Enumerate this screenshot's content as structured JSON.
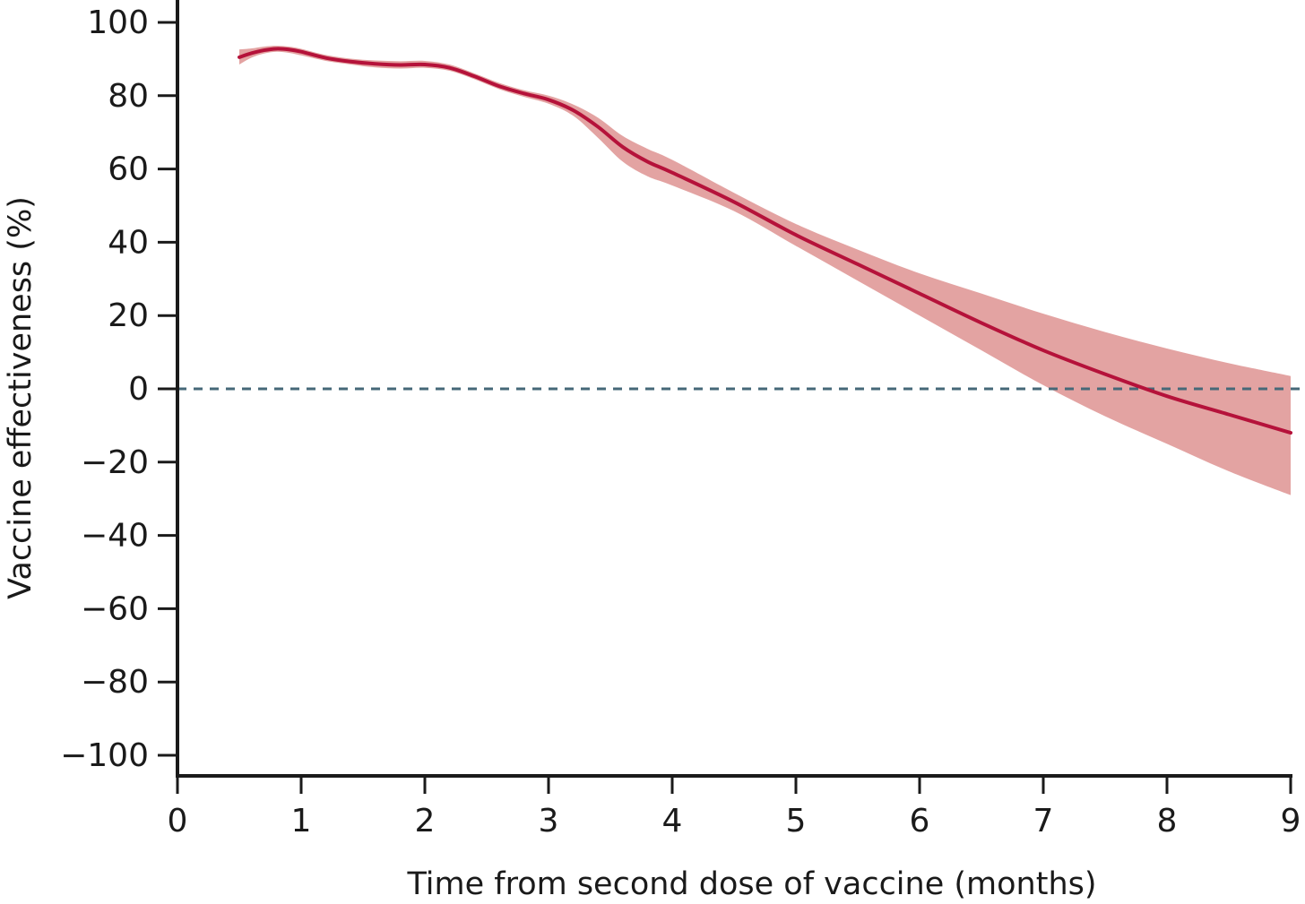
{
  "chart_data": {
    "type": "line",
    "title": "",
    "xlabel": "Time from second dose of vaccine (months)",
    "ylabel": "Vaccine effectiveness (%)",
    "xlim": [
      0,
      9
    ],
    "ylim": [
      -100,
      100
    ],
    "x_ticks": [
      {
        "value": 0,
        "label": "0"
      },
      {
        "value": 1,
        "label": "1"
      },
      {
        "value": 2,
        "label": "2"
      },
      {
        "value": 3,
        "label": "3"
      },
      {
        "value": 4,
        "label": "4"
      },
      {
        "value": 5,
        "label": "5"
      },
      {
        "value": 6,
        "label": "6"
      },
      {
        "value": 7,
        "label": "7"
      },
      {
        "value": 8,
        "label": "8"
      },
      {
        "value": 9,
        "label": "9"
      }
    ],
    "y_ticks": [
      {
        "value": 100,
        "label": "100"
      },
      {
        "value": 80,
        "label": "80"
      },
      {
        "value": 60,
        "label": "60"
      },
      {
        "value": 40,
        "label": "40"
      },
      {
        "value": 20,
        "label": "20"
      },
      {
        "value": 0,
        "label": "0"
      },
      {
        "value": -20,
        "label": "−20"
      },
      {
        "value": -40,
        "label": "−40"
      },
      {
        "value": -60,
        "label": "−60"
      },
      {
        "value": -80,
        "label": "−80"
      },
      {
        "value": -100,
        "label": "−100"
      }
    ],
    "reference_line": {
      "y": 0,
      "style": "dashed",
      "color": "#466878"
    },
    "grid": false,
    "series": [
      {
        "color": "#b5123a",
        "band_color": "#e3a3a2",
        "x": [
          0.5,
          0.6,
          0.7,
          0.8,
          0.9,
          1.0,
          1.2,
          1.4,
          1.6,
          1.8,
          2.0,
          2.2,
          2.4,
          2.6,
          2.8,
          3.0,
          3.2,
          3.4,
          3.6,
          3.8,
          4.0,
          4.5,
          5.0,
          5.5,
          6.0,
          6.5,
          7.0,
          7.5,
          8.0,
          8.5,
          9.0
        ],
        "y": [
          90.5,
          91.6,
          92.4,
          92.8,
          92.6,
          92.0,
          90.3,
          89.3,
          88.7,
          88.4,
          88.5,
          87.6,
          85.3,
          82.6,
          80.6,
          78.9,
          76.0,
          71.5,
          66.0,
          62.0,
          59.0,
          51.0,
          42.0,
          34.0,
          26.0,
          18.0,
          10.5,
          4.0,
          -2.0,
          -7.0,
          -12.0
        ],
        "lower": [
          88.5,
          90.4,
          91.5,
          92.0,
          91.7,
          91.0,
          89.5,
          88.5,
          87.7,
          87.4,
          87.6,
          86.8,
          84.5,
          81.8,
          79.7,
          77.8,
          74.5,
          68.5,
          62.0,
          58.0,
          55.5,
          48.5,
          39.0,
          29.5,
          20.0,
          10.5,
          1.0,
          -7.5,
          -15.0,
          -22.5,
          -29.0
        ],
        "upper": [
          92.6,
          92.9,
          93.4,
          93.6,
          93.4,
          92.8,
          91.1,
          90.1,
          89.6,
          89.4,
          89.5,
          88.5,
          86.1,
          83.5,
          81.5,
          80.0,
          77.6,
          74.0,
          69.0,
          65.5,
          62.5,
          53.5,
          45.0,
          38.0,
          31.5,
          26.0,
          20.5,
          15.5,
          11.0,
          7.0,
          3.5
        ]
      }
    ]
  }
}
